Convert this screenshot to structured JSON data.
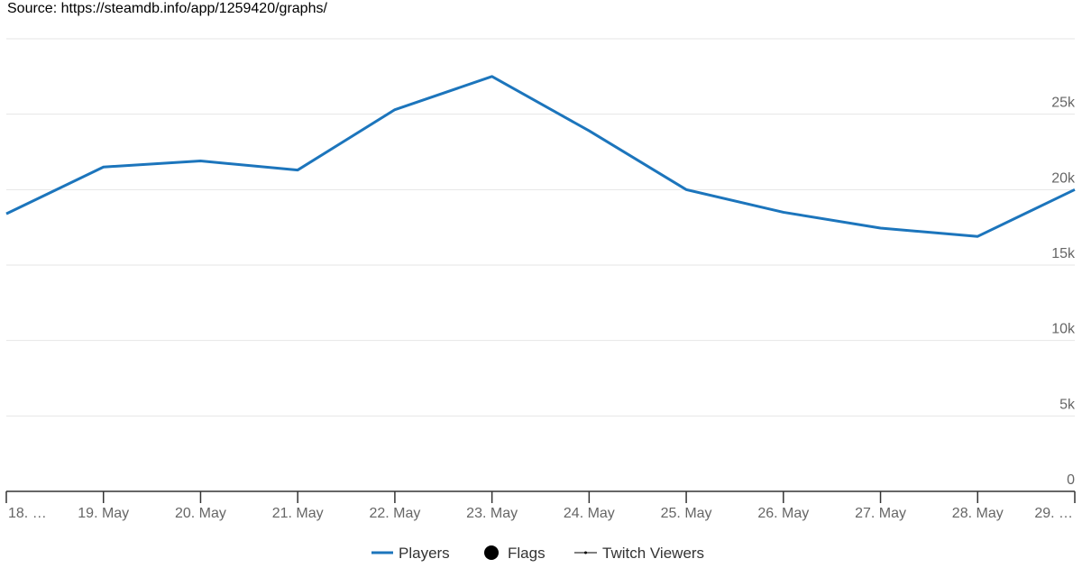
{
  "chart_data": {
    "type": "line",
    "source": "Source: https://steamdb.info/app/1259420/graphs/",
    "categories": [
      "18. …",
      "19. May",
      "20. May",
      "21. May",
      "22. May",
      "23. May",
      "24. May",
      "25. May",
      "26. May",
      "27. May",
      "28. May",
      "29. …"
    ],
    "series": [
      {
        "name": "Players",
        "color": "#1c75bc",
        "values": [
          18400,
          21500,
          21900,
          21300,
          25300,
          27500,
          23900,
          20000,
          18500,
          17450,
          16900,
          20000
        ]
      },
      {
        "name": "Flags",
        "color": "#000000",
        "values": [
          null,
          null,
          null,
          null,
          null,
          null,
          null,
          null,
          null,
          null,
          null,
          null
        ]
      },
      {
        "name": "Twitch Viewers",
        "color": "#000000",
        "values": [
          null,
          null,
          null,
          null,
          null,
          null,
          null,
          null,
          null,
          null,
          null,
          null
        ]
      }
    ],
    "ylim": [
      0,
      30000
    ],
    "yticks": [
      0,
      {
        "value": 5000,
        "label": "5k"
      },
      {
        "value": 10000,
        "label": "10k"
      },
      {
        "value": 15000,
        "label": "15k"
      },
      {
        "value": 20000,
        "label": "20k"
      },
      {
        "value": 25000,
        "label": "25k"
      }
    ],
    "grid": true
  }
}
